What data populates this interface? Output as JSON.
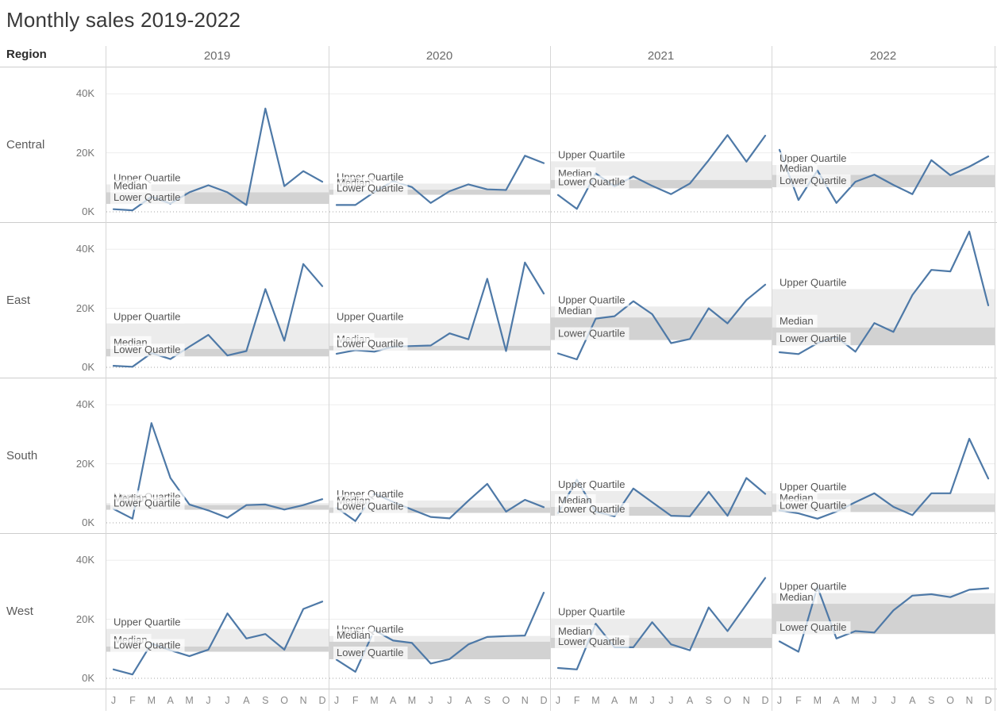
{
  "title": "Monthly sales 2019-2022",
  "header": {
    "region_label": "Region",
    "years": [
      "2019",
      "2020",
      "2021",
      "2022"
    ]
  },
  "axis": {
    "y_ticks": [
      "40K",
      "20K",
      "0K"
    ],
    "y_tick_values": [
      40,
      20,
      0
    ],
    "months": [
      "J",
      "F",
      "M",
      "A",
      "M",
      "J",
      "J",
      "A",
      "S",
      "O",
      "N",
      "D"
    ]
  },
  "band_labels": {
    "upper": "Upper Quartile",
    "median": "Median",
    "lower": "Lower Quartile"
  },
  "colors": {
    "line": "#4e79a7",
    "band_light": "#ececec",
    "band_dark": "#d2d2d2",
    "gridline": "#ededed",
    "zero_line": "#a6a6a6",
    "band_label_text": "#545454",
    "band_label_bg": "rgba(255,255,255,0.72)"
  },
  "chart_data": {
    "type": "line",
    "unit": "K (thousands of sales)",
    "rows": [
      "Central",
      "East",
      "South",
      "West"
    ],
    "columns": [
      "2019",
      "2020",
      "2021",
      "2022"
    ],
    "x_categories": [
      "Jan",
      "Feb",
      "Mar",
      "Apr",
      "May",
      "Jun",
      "Jul",
      "Aug",
      "Sep",
      "Oct",
      "Nov",
      "Dec"
    ],
    "ylim": [
      0,
      48.5
    ],
    "grid": "horizontal ticks at 0K, 20K, 40K; dotted line at 0K",
    "bands": "per-cell quartile reference bands: light gray = median to upper quartile, dark gray = lower quartile to median, labelled Upper Quartile / Median / Lower Quartile",
    "series": [
      {
        "region": "Central",
        "year": "2019",
        "values": [
          0.9,
          0.5,
          5.1,
          2.8,
          6.6,
          9.0,
          6.6,
          2.3,
          35.0,
          8.7,
          13.8,
          10.2
        ]
      },
      {
        "region": "Central",
        "year": "2020",
        "values": [
          2.3,
          2.3,
          6.7,
          10.4,
          8.4,
          3.0,
          7.0,
          9.3,
          7.6,
          7.4,
          19.0,
          16.5
        ]
      },
      {
        "region": "Central",
        "year": "2021",
        "values": [
          5.7,
          1.0,
          13.0,
          8.6,
          12.0,
          8.8,
          6.0,
          9.6,
          17.5,
          26.0,
          17.0,
          25.8
        ]
      },
      {
        "region": "Central",
        "year": "2022",
        "values": [
          21.0,
          4.0,
          14.0,
          3.0,
          10.2,
          12.6,
          9.1,
          6.0,
          17.5,
          12.4,
          15.3,
          18.8
        ]
      },
      {
        "region": "East",
        "year": "2019",
        "values": [
          0.5,
          0.2,
          4.8,
          2.8,
          7.0,
          11.0,
          4.0,
          5.5,
          26.5,
          9.0,
          35.0,
          27.5
        ]
      },
      {
        "region": "East",
        "year": "2020",
        "values": [
          4.6,
          5.8,
          5.3,
          7.0,
          7.2,
          7.4,
          11.5,
          9.5,
          30.0,
          5.5,
          35.5,
          25.0
        ]
      },
      {
        "region": "East",
        "year": "2021",
        "values": [
          4.7,
          2.7,
          16.5,
          17.3,
          22.4,
          18.0,
          8.2,
          9.6,
          20.0,
          14.9,
          22.8,
          28.0
        ]
      },
      {
        "region": "East",
        "year": "2022",
        "values": [
          5.1,
          4.5,
          8.2,
          10.3,
          5.3,
          15.0,
          12.0,
          24.5,
          33.0,
          32.5,
          46.0,
          21.0
        ]
      },
      {
        "region": "South",
        "year": "2019",
        "values": [
          4.7,
          1.4,
          33.8,
          15.2,
          6.2,
          4.2,
          1.7,
          6.0,
          6.2,
          4.5,
          6.0,
          8.0
        ]
      },
      {
        "region": "South",
        "year": "2020",
        "values": [
          5.1,
          0.6,
          9.9,
          7.1,
          4.5,
          2.0,
          1.5,
          7.5,
          13.2,
          3.8,
          7.8,
          5.3
        ]
      },
      {
        "region": "South",
        "year": "2021",
        "values": [
          3.3,
          14.6,
          3.8,
          2.2,
          11.6,
          7.0,
          2.4,
          2.2,
          10.5,
          2.4,
          15.2,
          9.8
        ]
      },
      {
        "region": "South",
        "year": "2022",
        "values": [
          4.2,
          3.2,
          1.4,
          3.8,
          7.0,
          10.0,
          5.4,
          2.6,
          10.0,
          10.0,
          28.5,
          15.0
        ]
      },
      {
        "region": "West",
        "year": "2019",
        "values": [
          3.0,
          1.3,
          11.8,
          9.5,
          7.5,
          9.7,
          22.0,
          13.5,
          15.0,
          9.7,
          23.5,
          26.0
        ]
      },
      {
        "region": "West",
        "year": "2020",
        "values": [
          6.3,
          2.2,
          16.3,
          12.8,
          12.0,
          5.0,
          6.5,
          11.5,
          14.0,
          14.3,
          14.5,
          29.0
        ]
      },
      {
        "region": "West",
        "year": "2021",
        "values": [
          3.5,
          3.0,
          18.5,
          10.5,
          10.5,
          19.0,
          11.5,
          9.5,
          24.0,
          16.0,
          25.0,
          34.0
        ]
      },
      {
        "region": "West",
        "year": "2022",
        "values": [
          12.5,
          9.0,
          31.0,
          13.5,
          16.0,
          15.5,
          23.0,
          28.0,
          28.5,
          27.5,
          30.0,
          30.5
        ]
      }
    ]
  }
}
